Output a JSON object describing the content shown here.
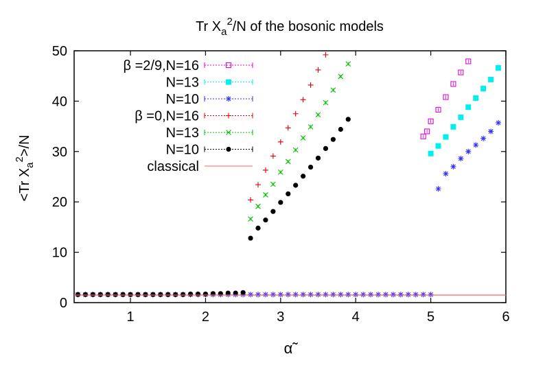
{
  "chart_data": {
    "type": "scatter",
    "title_main": "Tr X",
    "title_sub": "a",
    "title_sup": "2",
    "title_rest": "/N of the bosonic models",
    "ylabel_main": "<Tr X",
    "ylabel_sub": "a",
    "ylabel_sup": "2",
    "ylabel_rest": ">/N",
    "xlabel": "α̃",
    "xlim": [
      0.25,
      6
    ],
    "ylim": [
      0,
      50
    ],
    "xticks": [
      "1",
      "2",
      "3",
      "4",
      "5",
      "6"
    ],
    "yticks": [
      "0",
      "10",
      "20",
      "30",
      "40",
      "50"
    ],
    "grid": false,
    "legend_position": "top-left",
    "legend_labels": [
      "β =2/9,N=16",
      "N=13",
      "N=10",
      "β =0,N=16",
      "N=13",
      "N=10",
      "classical"
    ],
    "series": [
      {
        "name": "β =2/9,N=16",
        "marker": "open-square",
        "color": "#e000e0",
        "x": [
          4.9,
          4.95,
          5.0,
          5.1,
          5.2,
          5.3,
          5.4,
          5.5
        ],
        "y": [
          33.0,
          34.0,
          36.0,
          38.3,
          40.8,
          43.4,
          45.7,
          47.9
        ]
      },
      {
        "name": "N=13",
        "marker": "filled-square",
        "color": "#00f0f0",
        "x": [
          5.0,
          5.1,
          5.2,
          5.3,
          5.4,
          5.5,
          5.6,
          5.7,
          5.8,
          5.9
        ],
        "y": [
          29.6,
          31.1,
          32.9,
          34.9,
          36.8,
          38.8,
          40.6,
          42.5,
          44.3,
          46.6
        ]
      },
      {
        "name": "N=10",
        "marker": "asterisk",
        "color": "#3030ff",
        "x": [
          0.3,
          0.4,
          0.5,
          0.6,
          0.7,
          0.8,
          0.9,
          1.0,
          1.1,
          1.2,
          1.3,
          1.4,
          1.5,
          1.6,
          1.7,
          1.8,
          1.9,
          2.0,
          2.1,
          2.2,
          2.3,
          2.4,
          2.5,
          2.6,
          2.7,
          2.8,
          2.9,
          3.0,
          3.1,
          3.2,
          3.3,
          3.4,
          3.5,
          3.6,
          3.7,
          3.8,
          3.9,
          4.0,
          4.1,
          4.2,
          4.3,
          4.4,
          4.5,
          4.6,
          4.7,
          4.8,
          4.9,
          5.0,
          5.1,
          5.2,
          5.3,
          5.4,
          5.5,
          5.6,
          5.7,
          5.8,
          5.9
        ],
        "y": [
          1.6,
          1.6,
          1.6,
          1.6,
          1.6,
          1.6,
          1.6,
          1.6,
          1.6,
          1.6,
          1.6,
          1.6,
          1.6,
          1.6,
          1.6,
          1.6,
          1.6,
          1.6,
          1.6,
          1.6,
          1.6,
          1.6,
          1.6,
          1.6,
          1.6,
          1.6,
          1.6,
          1.6,
          1.6,
          1.6,
          1.6,
          1.6,
          1.6,
          1.6,
          1.6,
          1.6,
          1.6,
          1.6,
          1.6,
          1.6,
          1.6,
          1.6,
          1.6,
          1.6,
          1.6,
          1.6,
          1.6,
          1.6,
          22.6,
          25.6,
          27.0,
          28.6,
          30.0,
          31.3,
          32.6,
          34.0,
          35.7
        ]
      },
      {
        "name": "β =0,N=16",
        "marker": "plus",
        "color": "#e00000",
        "x": [
          2.6,
          2.7,
          2.8,
          2.9,
          3.0,
          3.1,
          3.2,
          3.3,
          3.4,
          3.5,
          3.6
        ],
        "y": [
          20.4,
          23.4,
          26.3,
          29.1,
          31.9,
          34.7,
          37.5,
          40.3,
          43.2,
          46.2,
          49.2
        ]
      },
      {
        "name": "N=13",
        "marker": "cross",
        "color": "#00c000",
        "x": [
          2.6,
          2.7,
          2.8,
          2.9,
          3.0,
          3.1,
          3.2,
          3.3,
          3.4,
          3.5,
          3.6,
          3.7,
          3.8,
          3.9
        ],
        "y": [
          16.6,
          19.1,
          21.4,
          23.5,
          25.9,
          28.0,
          30.3,
          32.7,
          34.9,
          37.3,
          39.7,
          42.2,
          44.9,
          47.4
        ]
      },
      {
        "name": "N=10",
        "marker": "filled-circle",
        "color": "#000000",
        "x": [
          0.3,
          0.4,
          0.5,
          0.6,
          0.7,
          0.8,
          0.9,
          1.0,
          1.1,
          1.2,
          1.3,
          1.4,
          1.5,
          1.6,
          1.7,
          1.8,
          1.9,
          2.0,
          2.1,
          2.2,
          2.3,
          2.4,
          2.5,
          2.6,
          2.7,
          2.8,
          2.9,
          3.0,
          3.1,
          3.2,
          3.3,
          3.4,
          3.5,
          3.6,
          3.7,
          3.8,
          3.9
        ],
        "y": [
          1.6,
          1.6,
          1.6,
          1.6,
          1.6,
          1.6,
          1.6,
          1.6,
          1.6,
          1.6,
          1.6,
          1.6,
          1.6,
          1.6,
          1.6,
          1.7,
          1.7,
          1.7,
          1.8,
          1.8,
          1.9,
          1.9,
          2.0,
          12.8,
          14.8,
          16.4,
          18.1,
          19.9,
          21.6,
          23.3,
          25.1,
          26.9,
          28.7,
          30.6,
          32.4,
          34.4,
          36.4
        ]
      },
      {
        "name": "classical",
        "marker": "line",
        "color": "#ff6060",
        "x": [
          0.25,
          6.0
        ],
        "y": [
          1.5,
          1.5
        ]
      }
    ]
  }
}
